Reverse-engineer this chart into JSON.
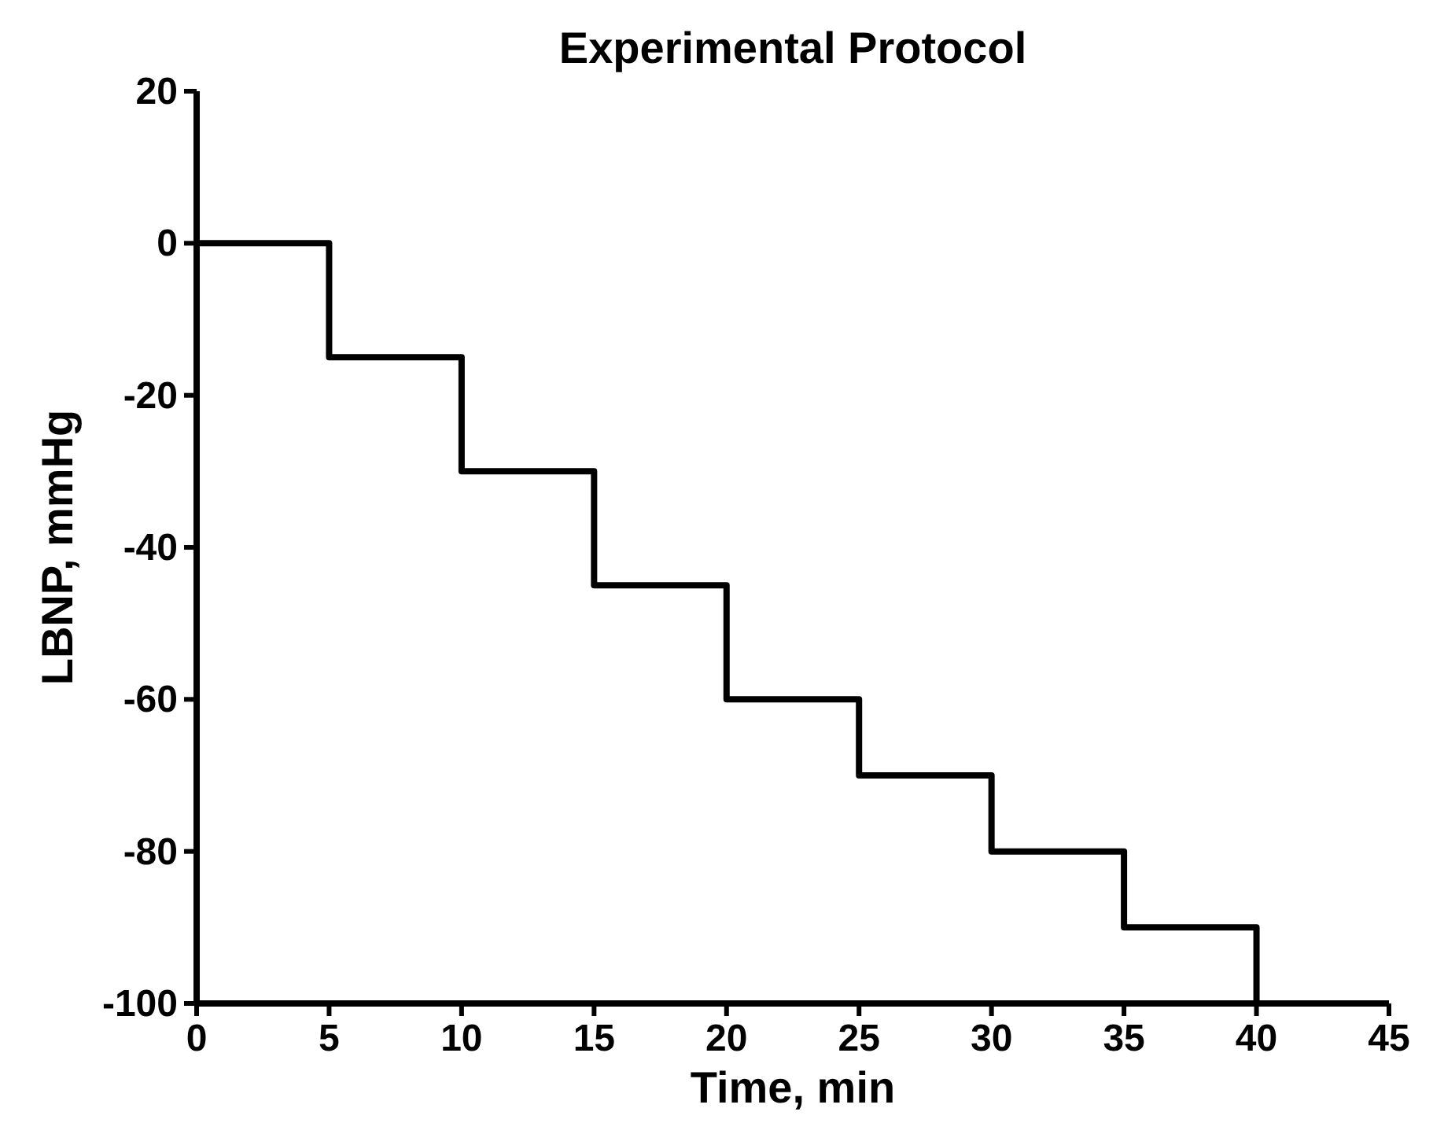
{
  "chart_data": {
    "type": "step",
    "title": "Experimental Protocol",
    "xlabel": "Time, min",
    "ylabel": "LBNP, mmHg",
    "x": [
      0,
      5,
      10,
      15,
      20,
      25,
      30,
      35,
      40,
      45
    ],
    "series": [
      {
        "color": "#000000",
        "values": [
          0,
          -15,
          -30,
          -45,
          -60,
          -70,
          -80,
          -90,
          -100,
          -100
        ]
      }
    ],
    "xlim": [
      0,
      45
    ],
    "xticks": [
      0,
      5,
      10,
      15,
      20,
      25,
      30,
      35,
      40,
      45
    ],
    "ylim": [
      -100,
      20
    ],
    "yticks": [
      -100,
      -80,
      -60,
      -40,
      -20,
      0,
      20
    ],
    "grid": false,
    "marker": "none",
    "line_style": "solid"
  }
}
